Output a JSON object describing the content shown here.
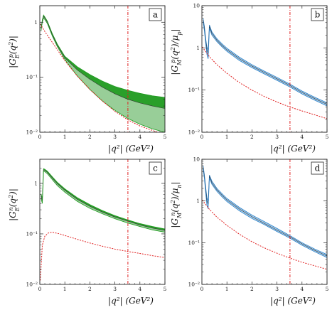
{
  "colors": {
    "green_dark": "#1e9a1e",
    "green_light": "#86c586",
    "blue": "#2a7fc6",
    "blue_light": "#7db8e6",
    "red": "#e02020",
    "frame": "#222222"
  },
  "chart_data": [
    {
      "id": "a",
      "type": "area",
      "panel_label": "a",
      "xlabel": "|q²| (GeV²)",
      "ylabel": "|G_E^p(q²)|",
      "xlim": [
        0,
        5
      ],
      "ylim": [
        0.01,
        2
      ],
      "yscale": "log",
      "xticks": [
        "0",
        "1",
        "2",
        "3",
        "4",
        "5"
      ],
      "yticks": [
        "10⁻²",
        "10⁻¹",
        "1"
      ],
      "vline": 3.52,
      "band_color": "green",
      "upper": [
        [
          0.05,
          0.78
        ],
        [
          0.1,
          1.1
        ],
        [
          0.15,
          1.35
        ],
        [
          0.2,
          1.25
        ],
        [
          0.3,
          1.05
        ],
        [
          0.5,
          0.62
        ],
        [
          0.7,
          0.4
        ],
        [
          1.0,
          0.24
        ],
        [
          1.5,
          0.155
        ],
        [
          2.0,
          0.112
        ],
        [
          2.5,
          0.085
        ],
        [
          3.0,
          0.068
        ],
        [
          3.5,
          0.058
        ],
        [
          4.0,
          0.051
        ],
        [
          4.5,
          0.046
        ],
        [
          5.0,
          0.043
        ]
      ],
      "middle": [
        [
          0.05,
          0.74
        ],
        [
          0.1,
          1.05
        ],
        [
          0.15,
          1.28
        ],
        [
          0.2,
          1.2
        ],
        [
          0.3,
          1.0
        ],
        [
          0.5,
          0.59
        ],
        [
          0.7,
          0.38
        ],
        [
          1.0,
          0.225
        ],
        [
          1.5,
          0.135
        ],
        [
          2.0,
          0.092
        ],
        [
          2.5,
          0.066
        ],
        [
          3.0,
          0.05
        ],
        [
          3.5,
          0.04
        ],
        [
          4.0,
          0.034
        ],
        [
          4.5,
          0.03
        ],
        [
          5.0,
          0.027
        ]
      ],
      "lower": [
        [
          0.05,
          0.7
        ],
        [
          0.1,
          1.0
        ],
        [
          0.15,
          1.2
        ],
        [
          0.2,
          1.12
        ],
        [
          0.3,
          0.95
        ],
        [
          0.5,
          0.56
        ],
        [
          0.7,
          0.36
        ],
        [
          1.0,
          0.21
        ],
        [
          1.5,
          0.105
        ],
        [
          2.0,
          0.06
        ],
        [
          2.5,
          0.037
        ],
        [
          3.0,
          0.025
        ],
        [
          3.5,
          0.018
        ],
        [
          4.0,
          0.014
        ],
        [
          4.5,
          0.0115
        ],
        [
          5.0,
          0.01
        ]
      ],
      "reference": [
        [
          0.02,
          0.93
        ],
        [
          0.2,
          0.68
        ],
        [
          0.5,
          0.43
        ],
        [
          1.0,
          0.2
        ],
        [
          1.5,
          0.105
        ],
        [
          2.0,
          0.06
        ],
        [
          2.5,
          0.037
        ],
        [
          3.0,
          0.024
        ],
        [
          3.5,
          0.017
        ],
        [
          4.0,
          0.013
        ],
        [
          4.5,
          0.0108
        ],
        [
          5.0,
          0.009
        ]
      ]
    },
    {
      "id": "b",
      "type": "area",
      "panel_label": "b",
      "xlabel": "|q²| (GeV²)",
      "ylabel": "|G_M^p(q²)/μ_p|",
      "xlim": [
        0,
        5
      ],
      "ylim": [
        0.01,
        10
      ],
      "yscale": "log",
      "xticks": [
        "0",
        "1",
        "2",
        "3",
        "4",
        "5"
      ],
      "yticks": [
        "10⁻²",
        "10⁻¹",
        "1",
        "10"
      ],
      "vline": 3.52,
      "band_color": "blue",
      "upper": [
        [
          0.05,
          5.0
        ],
        [
          0.1,
          3.2
        ],
        [
          0.15,
          1.7
        ],
        [
          0.2,
          1.05
        ],
        [
          0.25,
          0.9
        ],
        [
          0.3,
          3.5
        ],
        [
          0.4,
          2.4
        ],
        [
          0.6,
          1.65
        ],
        [
          0.8,
          1.25
        ],
        [
          1.0,
          0.98
        ],
        [
          1.5,
          0.6
        ],
        [
          2.0,
          0.4
        ],
        [
          2.5,
          0.28
        ],
        [
          3.0,
          0.2
        ],
        [
          3.5,
          0.14
        ],
        [
          4.0,
          0.095
        ],
        [
          4.5,
          0.068
        ],
        [
          5.0,
          0.05
        ]
      ],
      "middle": [
        [
          0.05,
          4.6
        ],
        [
          0.1,
          2.9
        ],
        [
          0.15,
          1.5
        ],
        [
          0.2,
          0.9
        ],
        [
          0.25,
          0.75
        ],
        [
          0.3,
          3.2
        ],
        [
          0.4,
          2.2
        ],
        [
          0.6,
          1.52
        ],
        [
          0.8,
          1.15
        ],
        [
          1.0,
          0.9
        ],
        [
          1.5,
          0.55
        ],
        [
          2.0,
          0.37
        ],
        [
          2.5,
          0.26
        ],
        [
          3.0,
          0.185
        ],
        [
          3.5,
          0.13
        ],
        [
          4.0,
          0.088
        ],
        [
          4.5,
          0.063
        ],
        [
          5.0,
          0.046
        ]
      ],
      "lower": [
        [
          0.05,
          4.2
        ],
        [
          0.1,
          2.5
        ],
        [
          0.15,
          1.3
        ],
        [
          0.2,
          0.7
        ],
        [
          0.25,
          0.55
        ],
        [
          0.3,
          2.9
        ],
        [
          0.4,
          2.0
        ],
        [
          0.6,
          1.4
        ],
        [
          0.8,
          1.06
        ],
        [
          1.0,
          0.83
        ],
        [
          1.5,
          0.5
        ],
        [
          2.0,
          0.34
        ],
        [
          2.5,
          0.24
        ],
        [
          3.0,
          0.17
        ],
        [
          3.5,
          0.12
        ],
        [
          4.0,
          0.081
        ],
        [
          4.5,
          0.058
        ],
        [
          5.0,
          0.042
        ]
      ],
      "reference": [
        [
          0.02,
          1.05
        ],
        [
          0.3,
          0.62
        ],
        [
          0.6,
          0.4
        ],
        [
          1.0,
          0.25
        ],
        [
          1.5,
          0.15
        ],
        [
          2.0,
          0.1
        ],
        [
          2.5,
          0.07
        ],
        [
          3.0,
          0.052
        ],
        [
          3.5,
          0.04
        ],
        [
          4.0,
          0.032
        ],
        [
          4.5,
          0.026
        ],
        [
          5.0,
          0.021
        ]
      ]
    },
    {
      "id": "c",
      "type": "area",
      "panel_label": "c",
      "xlabel": "|q²| (GeV²)",
      "ylabel": "|G_E^n(q²)|",
      "xlim": [
        0,
        5
      ],
      "ylim": [
        0.01,
        3
      ],
      "yscale": "log",
      "xticks": [
        "0",
        "1",
        "2",
        "3",
        "4",
        "5"
      ],
      "yticks": [
        "10⁻²",
        "10⁻¹",
        "1"
      ],
      "vline": 3.52,
      "band_color": "green",
      "upper": [
        [
          0.05,
          0.62
        ],
        [
          0.1,
          0.5
        ],
        [
          0.15,
          1.95
        ],
        [
          0.2,
          1.9
        ],
        [
          0.3,
          1.75
        ],
        [
          0.5,
          1.35
        ],
        [
          0.7,
          1.05
        ],
        [
          1.0,
          0.78
        ],
        [
          1.5,
          0.52
        ],
        [
          2.0,
          0.38
        ],
        [
          2.5,
          0.29
        ],
        [
          3.0,
          0.23
        ],
        [
          3.5,
          0.19
        ],
        [
          4.0,
          0.16
        ],
        [
          4.5,
          0.14
        ],
        [
          5.0,
          0.125
        ]
      ],
      "middle": [
        [
          0.05,
          0.57
        ],
        [
          0.1,
          0.45
        ],
        [
          0.15,
          1.85
        ],
        [
          0.2,
          1.8
        ],
        [
          0.3,
          1.65
        ],
        [
          0.5,
          1.27
        ],
        [
          0.7,
          0.98
        ],
        [
          1.0,
          0.73
        ],
        [
          1.5,
          0.48
        ],
        [
          2.0,
          0.35
        ],
        [
          2.5,
          0.27
        ],
        [
          3.0,
          0.215
        ],
        [
          3.5,
          0.18
        ],
        [
          4.0,
          0.15
        ],
        [
          4.5,
          0.13
        ],
        [
          5.0,
          0.117
        ]
      ],
      "lower": [
        [
          0.05,
          0.5
        ],
        [
          0.1,
          0.4
        ],
        [
          0.15,
          1.75
        ],
        [
          0.2,
          1.7
        ],
        [
          0.3,
          1.55
        ],
        [
          0.5,
          1.18
        ],
        [
          0.7,
          0.9
        ],
        [
          1.0,
          0.67
        ],
        [
          1.5,
          0.44
        ],
        [
          2.0,
          0.32
        ],
        [
          2.5,
          0.25
        ],
        [
          3.0,
          0.2
        ],
        [
          3.5,
          0.165
        ],
        [
          4.0,
          0.14
        ],
        [
          4.5,
          0.12
        ],
        [
          5.0,
          0.108
        ]
      ],
      "reference": [
        [
          0.02,
          0.012
        ],
        [
          0.1,
          0.06
        ],
        [
          0.2,
          0.09
        ],
        [
          0.35,
          0.105
        ],
        [
          0.5,
          0.108
        ],
        [
          0.8,
          0.1
        ],
        [
          1.0,
          0.093
        ],
        [
          1.5,
          0.078
        ],
        [
          2.0,
          0.066
        ],
        [
          2.5,
          0.057
        ],
        [
          3.0,
          0.05
        ],
        [
          3.5,
          0.045
        ],
        [
          4.0,
          0.041
        ],
        [
          4.5,
          0.037
        ],
        [
          5.0,
          0.034
        ]
      ]
    },
    {
      "id": "d",
      "type": "area",
      "panel_label": "d",
      "xlabel": "|q²| (GeV²)",
      "ylabel": "|G_M^n(q²)/μ_n|",
      "xlim": [
        0,
        5
      ],
      "ylim": [
        0.01,
        10
      ],
      "yscale": "log",
      "xticks": [
        "0",
        "1",
        "2",
        "3",
        "4",
        "5"
      ],
      "yticks": [
        "10⁻²",
        "10⁻¹",
        "1",
        "10"
      ],
      "vline": 3.52,
      "band_color": "blue",
      "upper": [
        [
          0.05,
          7.0
        ],
        [
          0.1,
          4.2
        ],
        [
          0.15,
          2.2
        ],
        [
          0.2,
          1.2
        ],
        [
          0.25,
          1.0
        ],
        [
          0.3,
          4.2
        ],
        [
          0.4,
          3.0
        ],
        [
          0.6,
          2.0
        ],
        [
          0.8,
          1.5
        ],
        [
          1.0,
          1.15
        ],
        [
          1.5,
          0.7
        ],
        [
          2.0,
          0.46
        ],
        [
          2.5,
          0.32
        ],
        [
          3.0,
          0.22
        ],
        [
          3.5,
          0.15
        ],
        [
          4.0,
          0.1
        ],
        [
          4.5,
          0.071
        ],
        [
          5.0,
          0.052
        ]
      ],
      "middle": [
        [
          0.05,
          6.4
        ],
        [
          0.1,
          3.8
        ],
        [
          0.15,
          1.9
        ],
        [
          0.2,
          1.0
        ],
        [
          0.25,
          0.85
        ],
        [
          0.3,
          3.9
        ],
        [
          0.4,
          2.75
        ],
        [
          0.6,
          1.85
        ],
        [
          0.8,
          1.38
        ],
        [
          1.0,
          1.06
        ],
        [
          1.5,
          0.64
        ],
        [
          2.0,
          0.42
        ],
        [
          2.5,
          0.29
        ],
        [
          3.0,
          0.2
        ],
        [
          3.5,
          0.14
        ],
        [
          4.0,
          0.094
        ],
        [
          4.5,
          0.066
        ],
        [
          5.0,
          0.048
        ]
      ],
      "lower": [
        [
          0.05,
          5.8
        ],
        [
          0.1,
          3.4
        ],
        [
          0.15,
          1.6
        ],
        [
          0.2,
          0.8
        ],
        [
          0.25,
          0.65
        ],
        [
          0.3,
          3.6
        ],
        [
          0.4,
          2.5
        ],
        [
          0.6,
          1.7
        ],
        [
          0.8,
          1.26
        ],
        [
          1.0,
          0.97
        ],
        [
          1.5,
          0.58
        ],
        [
          2.0,
          0.38
        ],
        [
          2.5,
          0.27
        ],
        [
          3.0,
          0.185
        ],
        [
          3.5,
          0.13
        ],
        [
          4.0,
          0.087
        ],
        [
          4.5,
          0.061
        ],
        [
          5.0,
          0.044
        ]
      ],
      "reference": [
        [
          0.02,
          1.05
        ],
        [
          0.3,
          0.63
        ],
        [
          0.6,
          0.41
        ],
        [
          1.0,
          0.26
        ],
        [
          1.5,
          0.16
        ],
        [
          2.0,
          0.105
        ],
        [
          2.5,
          0.075
        ],
        [
          3.0,
          0.056
        ],
        [
          3.5,
          0.043
        ],
        [
          4.0,
          0.034
        ],
        [
          4.5,
          0.028
        ],
        [
          5.0,
          0.023
        ]
      ]
    }
  ]
}
